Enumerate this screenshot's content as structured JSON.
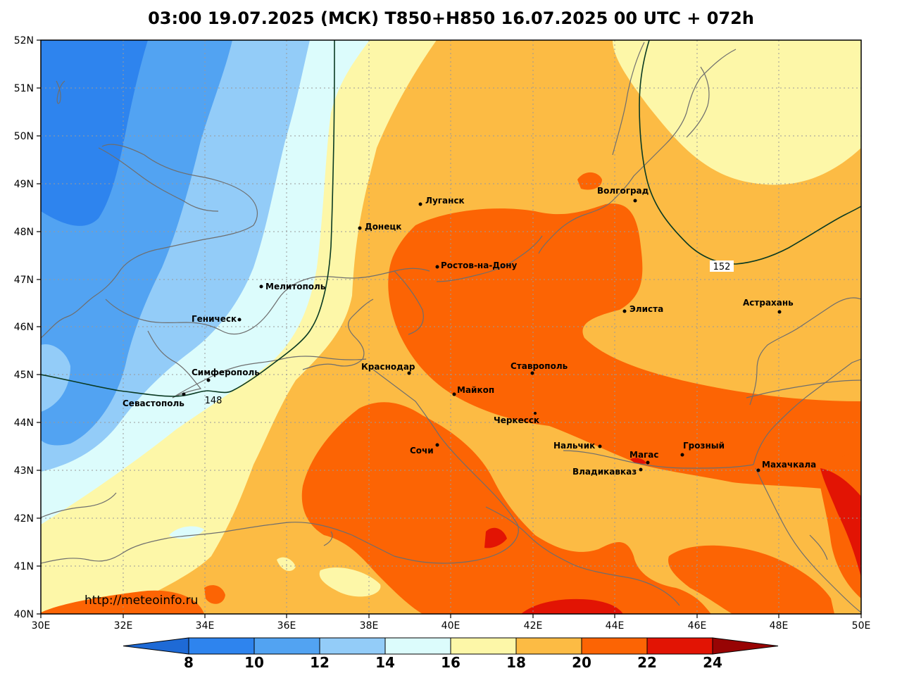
{
  "title": "03:00 19.07.2025 (МСК) T850+H850 16.07.2025 00 UTC + 072h",
  "watermark": "http://meteoinfo.ru",
  "lat_labels": [
    "52N",
    "51N",
    "50N",
    "49N",
    "48N",
    "47N",
    "46N",
    "45N",
    "44N",
    "43N",
    "42N",
    "41N",
    "40N"
  ],
  "lon_labels": [
    "30E",
    "32E",
    "34E",
    "36E",
    "38E",
    "40E",
    "42E",
    "44E",
    "46E",
    "48E",
    "50E"
  ],
  "contour_labels": [
    "148",
    "152"
  ],
  "cities": [
    {
      "name": "Луганск"
    },
    {
      "name": "Волгоград"
    },
    {
      "name": "Донецк"
    },
    {
      "name": "Ростов-на-Дону"
    },
    {
      "name": "Мелитополь"
    },
    {
      "name": "Элиста"
    },
    {
      "name": "Астрахань"
    },
    {
      "name": "Геническ"
    },
    {
      "name": "Симферополь"
    },
    {
      "name": "Краснодар"
    },
    {
      "name": "Ставрополь"
    },
    {
      "name": "Севастополь"
    },
    {
      "name": "Майкоп"
    },
    {
      "name": "Черкесск"
    },
    {
      "name": "Нальчик"
    },
    {
      "name": "Сочи"
    },
    {
      "name": "Грозный"
    },
    {
      "name": "Магас"
    },
    {
      "name": "Махачкала"
    },
    {
      "name": "Владикавказ"
    }
  ],
  "colorbar": {
    "labels": [
      "8",
      "10",
      "12",
      "14",
      "16",
      "18",
      "20",
      "22",
      "24"
    ],
    "colors": [
      "#1e6ad6",
      "#2e84ee",
      "#52a3f2",
      "#93ccf8",
      "#dcfcfc",
      "#fdf7a8",
      "#fcbb44",
      "#fc6404",
      "#e21404",
      "#980404"
    ]
  }
}
